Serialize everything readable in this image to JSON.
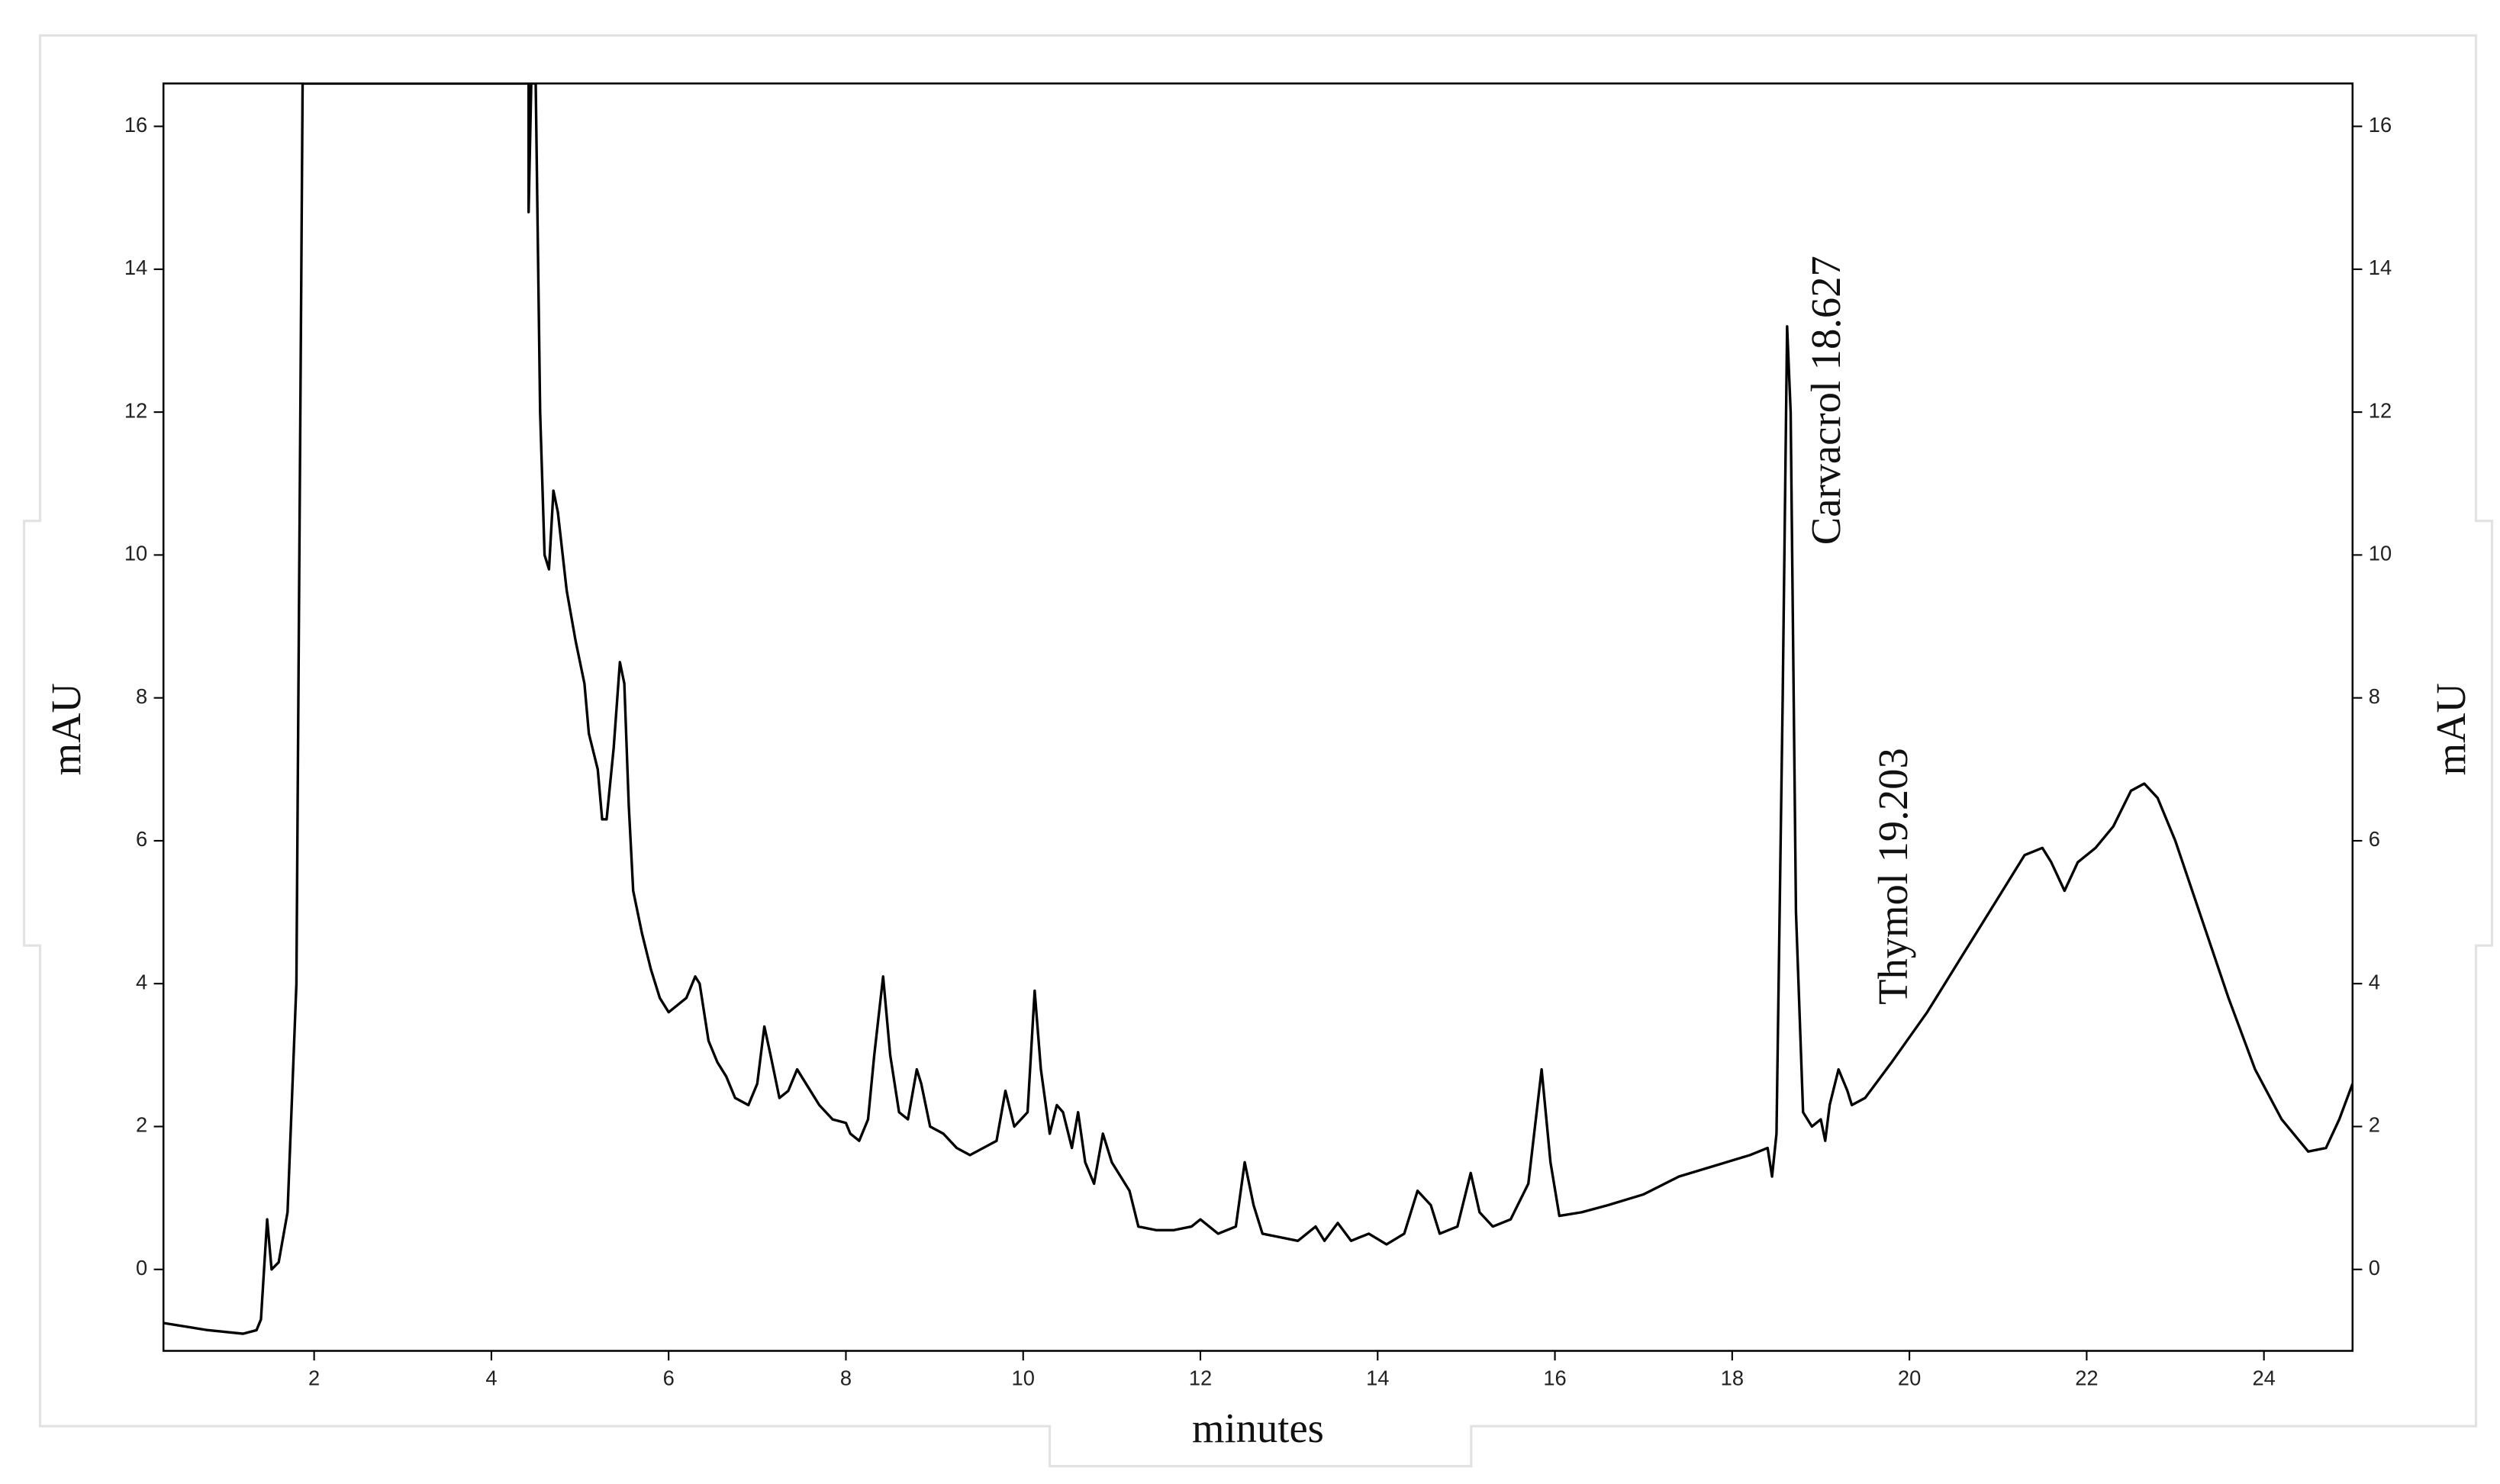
{
  "chart_data": {
    "type": "line",
    "xlabel": "minutes",
    "ylabel": "mAU",
    "y2label": "mAU",
    "annotations": [
      "Carvacrol 18.627",
      "Thymol 19.203"
    ],
    "color": "#000000",
    "xlim": [
      0.3,
      25.0
    ],
    "ylim": [
      -1.14,
      16.6
    ],
    "y2lim": [
      -1.14,
      16.6
    ],
    "xticks": [
      2,
      4,
      6,
      8,
      10,
      12,
      14,
      16,
      18,
      20,
      22,
      24
    ],
    "yticks": [
      0,
      2,
      4,
      6,
      8,
      10,
      12,
      14,
      16
    ],
    "y2ticks": [
      0,
      2,
      4,
      6,
      8,
      10,
      12,
      14,
      16
    ],
    "x": [
      0.3,
      0.8,
      1.2,
      1.35,
      1.4,
      1.47,
      1.52,
      1.6,
      1.7,
      1.8,
      1.87,
      4.42,
      4.42,
      4.45,
      4.5,
      4.55,
      4.6,
      4.65,
      4.7,
      4.75,
      4.85,
      4.95,
      5.05,
      5.1,
      5.2,
      5.25,
      5.3,
      5.38,
      5.45,
      5.5,
      5.55,
      5.6,
      5.7,
      5.8,
      5.9,
      6.0,
      6.1,
      6.2,
      6.3,
      6.35,
      6.45,
      6.55,
      6.65,
      6.75,
      6.9,
      7.0,
      7.08,
      7.15,
      7.25,
      7.35,
      7.45,
      7.55,
      7.7,
      7.85,
      8.0,
      8.05,
      8.15,
      8.25,
      8.32,
      8.42,
      8.5,
      8.6,
      8.7,
      8.8,
      8.85,
      8.95,
      9.1,
      9.25,
      9.4,
      9.55,
      9.7,
      9.8,
      9.9,
      10.05,
      10.13,
      10.2,
      10.3,
      10.38,
      10.45,
      10.55,
      10.62,
      10.7,
      10.8,
      10.9,
      11.0,
      11.1,
      11.2,
      11.3,
      11.5,
      11.7,
      11.9,
      12.0,
      12.2,
      12.4,
      12.5,
      12.6,
      12.7,
      12.9,
      13.1,
      13.3,
      13.4,
      13.55,
      13.7,
      13.9,
      14.1,
      14.3,
      14.45,
      14.6,
      14.7,
      14.9,
      15.05,
      15.15,
      15.3,
      15.5,
      15.7,
      15.85,
      15.95,
      16.05,
      16.3,
      16.6,
      17.0,
      17.4,
      17.8,
      18.2,
      18.4,
      18.45,
      18.5,
      18.57,
      18.62,
      18.66,
      18.72,
      18.8,
      18.9,
      19.0,
      19.05,
      19.1,
      19.2,
      19.3,
      19.35,
      19.5,
      19.8,
      20.2,
      20.6,
      21.0,
      21.3,
      21.5,
      21.6,
      21.75,
      21.9,
      22.1,
      22.3,
      22.5,
      22.65,
      22.8,
      23.0,
      23.3,
      23.6,
      23.9,
      24.2,
      24.5,
      24.7,
      24.85,
      25.0
    ],
    "values": [
      -0.75,
      -0.85,
      -0.9,
      -0.85,
      -0.7,
      0.7,
      0.0,
      0.1,
      0.8,
      4,
      16.6,
      16.6,
      14.8,
      16.6,
      16.6,
      12,
      10,
      9.8,
      10.9,
      10.6,
      9.5,
      8.8,
      8.2,
      7.5,
      7,
      6.3,
      6.3,
      7.3,
      8.5,
      8.2,
      6.5,
      5.3,
      4.7,
      4.2,
      3.8,
      3.6,
      3.7,
      3.8,
      4.1,
      4.0,
      3.2,
      2.9,
      2.7,
      2.4,
      2.3,
      2.6,
      3.4,
      3.0,
      2.4,
      2.5,
      2.8,
      2.6,
      2.3,
      2.1,
      2.05,
      1.9,
      1.8,
      2.1,
      3.0,
      4.1,
      3.0,
      2.2,
      2.1,
      2.8,
      2.6,
      2.0,
      1.9,
      1.7,
      1.6,
      1.7,
      1.8,
      2.5,
      2.0,
      2.2,
      3.9,
      2.8,
      1.9,
      2.3,
      2.2,
      1.7,
      2.2,
      1.5,
      1.2,
      1.9,
      1.5,
      1.3,
      1.1,
      0.6,
      0.55,
      0.55,
      0.6,
      0.7,
      0.5,
      0.6,
      1.5,
      0.9,
      0.5,
      0.45,
      0.4,
      0.6,
      0.4,
      0.65,
      0.4,
      0.5,
      0.35,
      0.5,
      1.1,
      0.9,
      0.5,
      0.6,
      1.35,
      0.8,
      0.6,
      0.7,
      1.2,
      2.8,
      1.5,
      0.75,
      0.8,
      0.9,
      1.05,
      1.3,
      1.45,
      1.6,
      1.7,
      1.3,
      1.9,
      8,
      13.2,
      12,
      5,
      2.2,
      2.0,
      2.1,
      1.8,
      2.3,
      2.8,
      2.5,
      2.3,
      2.4,
      2.9,
      3.6,
      4.4,
      5.2,
      5.8,
      5.9,
      5.7,
      5.3,
      5.7,
      5.9,
      6.2,
      6.7,
      6.8,
      6.6,
      6.0,
      4.9,
      3.8,
      2.8,
      2.1,
      1.65,
      1.7,
      2.1,
      2.6
    ]
  }
}
